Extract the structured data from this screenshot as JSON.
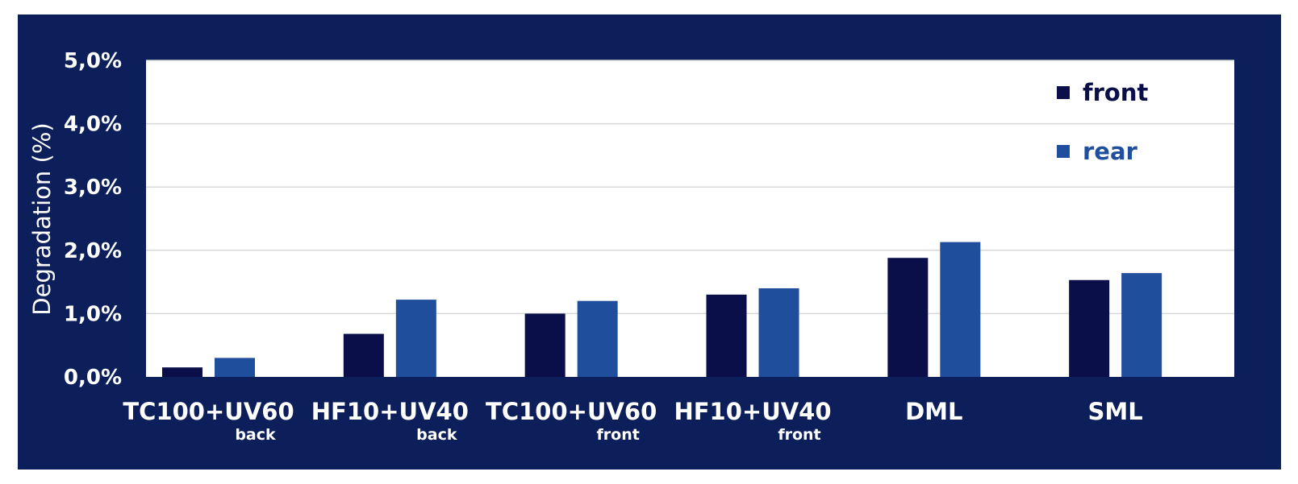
{
  "chart_data": {
    "type": "bar",
    "ylabel": "Degradation (%)",
    "ylim": [
      0,
      5
    ],
    "yticks": [
      {
        "value": 0,
        "label": "0,0%"
      },
      {
        "value": 1,
        "label": "1,0%"
      },
      {
        "value": 2,
        "label": "2,0%"
      },
      {
        "value": 3,
        "label": "3,0%"
      },
      {
        "value": 4,
        "label": "4,0%"
      },
      {
        "value": 5,
        "label": "5,0%"
      }
    ],
    "categories": [
      {
        "label": "TC100+UV60",
        "sub": "back"
      },
      {
        "label": "HF10+UV40",
        "sub": "back"
      },
      {
        "label": "TC100+UV60",
        "sub": "front"
      },
      {
        "label": "HF10+UV40",
        "sub": "front"
      },
      {
        "label": "DML",
        "sub": ""
      },
      {
        "label": "SML",
        "sub": ""
      }
    ],
    "series": [
      {
        "name": "front",
        "color": "#0a0f4a",
        "values": [
          0.15,
          0.68,
          1.0,
          1.3,
          1.88,
          1.53
        ]
      },
      {
        "name": "rear",
        "color": "#1f4e9c",
        "values": [
          0.3,
          1.22,
          1.2,
          1.4,
          2.13,
          1.64
        ]
      }
    ],
    "grid": true,
    "legend": "top-right"
  }
}
